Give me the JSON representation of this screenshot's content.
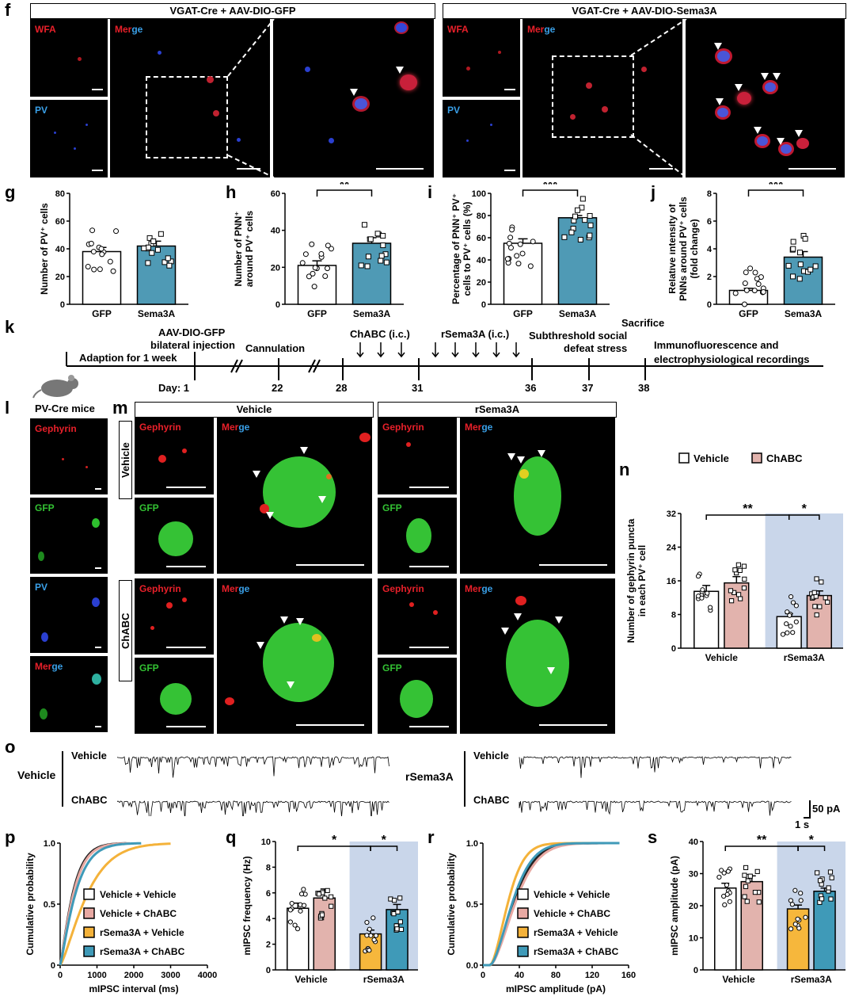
{
  "panels": {
    "f": "f",
    "g": "g",
    "h": "h",
    "i": "i",
    "j": "j",
    "k": "k",
    "l": "l",
    "m": "m",
    "n": "n",
    "o": "o",
    "p": "p",
    "q": "q",
    "r": "r",
    "s": "s"
  },
  "f": {
    "left_title": "VGAT-Cre + AAV-DIO-GFP",
    "right_title": "VGAT-Cre + AAV-DIO-Sema3A",
    "wfa": "WFA",
    "pv": "PV",
    "merge_a": "Mer",
    "merge_b": "ge"
  },
  "timeline": {
    "adaption": "Adaption for 1 week",
    "injection_line1": "AAV-DIO-GFP",
    "injection_line2": "bilateral injection",
    "cannulation": "Cannulation",
    "chabc": "ChABC (i.c.)",
    "rsema": "rSema3A (i.c.)",
    "stress_line1": "Subthreshold social",
    "stress_line2": "defeat stress",
    "sacrifice": "Sacrifice",
    "immuno_line1": "Immunofluorescence and",
    "immuno_line2": "electrophysiological recordings",
    "day_label": "Day: 1",
    "days": [
      "22",
      "28",
      "31",
      "36",
      "37",
      "38"
    ],
    "mice": "PV-Cre mice"
  },
  "l": {
    "gephyrin": "Gephyrin",
    "gfp": "GFP",
    "pv": "PV",
    "merge_a": "Mer",
    "merge_b": "ge"
  },
  "m": {
    "vehicle_title": "Vehicle",
    "rsema_title": "rSema3A",
    "row_vehicle": "Vehicle",
    "row_chabc": "ChABC",
    "gephyrin": "Gephyrin",
    "gfp": "GFP",
    "merge_a": "Mer",
    "merge_b": "ge"
  },
  "o": {
    "group_vehicle": "Vehicle",
    "group_rsema": "rSema3A",
    "trace_vehicle": "Vehicle",
    "trace_chabc": "ChABC",
    "scale_pa": "50 pA",
    "scale_s": "1 s"
  },
  "colors": {
    "gfp": "#ffffff",
    "sema": "#4f9ab5",
    "vehicle": "#ffffff",
    "chabc": "#e2b3ad",
    "rsema_vehicle": "#f6b73c",
    "rsema_chabc": "#3f9ab8",
    "shade": "#c9d6ea"
  },
  "chart_data": [
    {
      "id": "g",
      "type": "bar",
      "categories": [
        "GFP",
        "Sema3A"
      ],
      "values": [
        38,
        42
      ],
      "errors": [
        3,
        3.5
      ],
      "ylabel": "Number of PV⁺ cells",
      "ylim": [
        0,
        80
      ],
      "yticks": [
        "0",
        "20",
        "40",
        "60",
        "80"
      ],
      "significance": ""
    },
    {
      "id": "h",
      "type": "bar",
      "categories": [
        "GFP",
        "Sema3A"
      ],
      "values": [
        21,
        33
      ],
      "errors": [
        2.5,
        3
      ],
      "ylabel_line1": "Number of PNN⁺",
      "ylabel_line2": "around PV⁺ cells",
      "ylim": [
        0,
        60
      ],
      "yticks": [
        "0",
        "20",
        "40",
        "60"
      ],
      "significance": "**"
    },
    {
      "id": "i",
      "type": "bar",
      "categories": [
        "GFP",
        "Sema3A"
      ],
      "values": [
        55,
        78
      ],
      "errors": [
        4,
        2
      ],
      "ylabel_line1": "Percentage of PNN⁺ PV⁺",
      "ylabel_line2": "cells to PV⁺ cells (%)",
      "ylim": [
        0,
        100
      ],
      "yticks": [
        "0",
        "20",
        "40",
        "60",
        "80",
        "100"
      ],
      "significance": "***"
    },
    {
      "id": "j",
      "type": "bar",
      "categories": [
        "GFP",
        "Sema3A"
      ],
      "values": [
        1.0,
        3.4
      ],
      "errors": [
        0.15,
        0.4
      ],
      "ylabel_line1": "Relative intensity of",
      "ylabel_line2": "PNNs around PV⁺ cells",
      "ylabel_line3": "(fold change)",
      "ylim": [
        0,
        8
      ],
      "yticks": [
        "0",
        "2",
        "4",
        "6",
        "8"
      ],
      "significance": "***"
    },
    {
      "id": "n",
      "type": "bar",
      "groups": [
        "Vehicle",
        "rSema3A"
      ],
      "series": [
        {
          "name": "Vehicle",
          "values": [
            13.5,
            7.5
          ],
          "errors": [
            1.4,
            0.7
          ]
        },
        {
          "name": "ChABC",
          "values": [
            15.5,
            12.5
          ],
          "errors": [
            1.5,
            1.1
          ]
        }
      ],
      "ylabel_line1": "Number of gephyrin puncta",
      "ylabel_line2": "in each PV⁺ cell",
      "ylim": [
        0,
        32
      ],
      "yticks": [
        "0",
        "8",
        "16",
        "24",
        "32"
      ],
      "sig_between": "**",
      "sig_within": "*"
    },
    {
      "id": "p",
      "type": "line",
      "series": [
        {
          "name": "Vehicle + Vehicle"
        },
        {
          "name": "Vehicle + ChABC"
        },
        {
          "name": "rSema3A + Vehicle"
        },
        {
          "name": "rSema3A + ChABC"
        }
      ],
      "xlabel": "mIPSC interval (ms)",
      "ylabel": "Cumulative probability",
      "xlim": [
        0,
        4000
      ],
      "ylim": [
        0,
        1.0
      ],
      "xticks": [
        "0",
        "1000",
        "2000",
        "3000",
        "4000"
      ],
      "yticks": [
        "0",
        "0.5",
        "1.0"
      ]
    },
    {
      "id": "q",
      "type": "bar",
      "groups": [
        "Vehicle",
        "rSema3A"
      ],
      "series": [
        {
          "name": "Vehicle",
          "values": [
            4.8,
            2.8
          ],
          "errors": [
            0.4,
            0.3
          ]
        },
        {
          "name": "ChABC",
          "values": [
            5.6,
            4.7
          ],
          "errors": [
            0.7,
            0.4
          ]
        }
      ],
      "ylabel": "mIPSC frequency (Hz)",
      "ylim": [
        0,
        10
      ],
      "yticks": [
        "0",
        "2",
        "4",
        "6",
        "8",
        "10"
      ],
      "sig_between": "*",
      "sig_within": "*"
    },
    {
      "id": "r",
      "type": "line",
      "series": [
        {
          "name": "Vehicle + Vehicle"
        },
        {
          "name": "Vehicle + ChABC"
        },
        {
          "name": "rSema3A + Vehicle"
        },
        {
          "name": "rSema3A + ChABC"
        }
      ],
      "xlabel": "mIPSC amplitude (pA)",
      "ylabel": "Cumulative probability",
      "xlim": [
        0,
        160
      ],
      "ylim": [
        0,
        1.0
      ],
      "xticks": [
        "0",
        "40",
        "80",
        "120",
        "160"
      ],
      "yticks": [
        "0.0",
        "0.5",
        "1.0"
      ]
    },
    {
      "id": "s",
      "type": "bar",
      "groups": [
        "Vehicle",
        "rSema3A"
      ],
      "series": [
        {
          "name": "Vehicle",
          "values": [
            25.5,
            19
          ],
          "errors": [
            1.5,
            1.2
          ]
        },
        {
          "name": "ChABC",
          "values": [
            27.5,
            24.5
          ],
          "errors": [
            1.8,
            1.0
          ]
        }
      ],
      "ylabel": "mIPSC amplitude (pA)",
      "ylim": [
        0,
        40
      ],
      "yticks": [
        "0",
        "10",
        "20",
        "30",
        "40"
      ],
      "sig_between": "**",
      "sig_within": "*"
    }
  ]
}
